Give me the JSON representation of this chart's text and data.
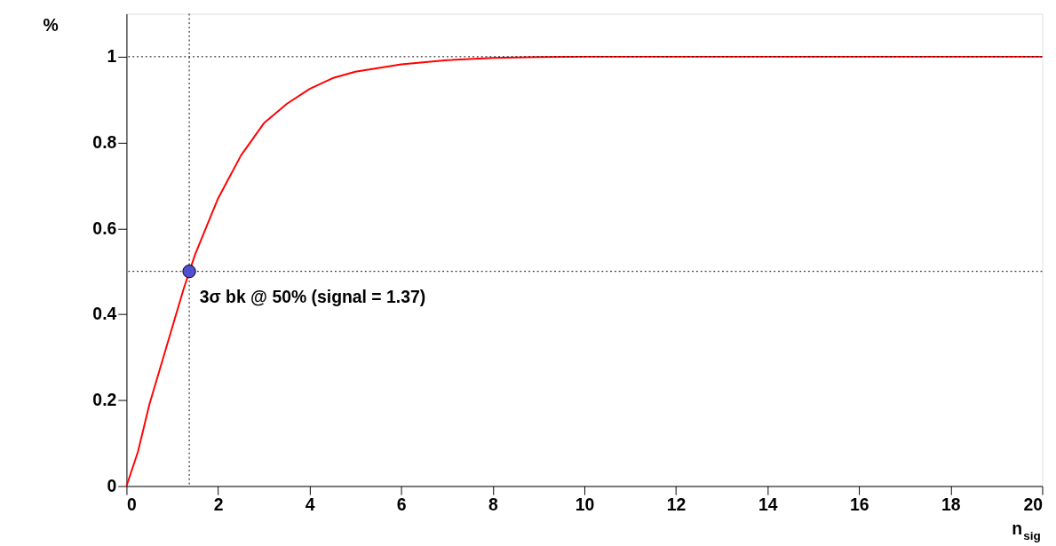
{
  "chart_data": {
    "type": "line",
    "xlabel": "n$_{sig}$",
    "ylabel": "%",
    "xlim": [
      0,
      20
    ],
    "xticks": [
      0,
      2,
      4,
      6,
      8,
      10,
      12,
      14,
      16,
      18,
      20
    ],
    "ylim": [
      0,
      1.1
    ],
    "yticks": [
      0,
      0.2,
      0.4,
      0.6,
      0.8,
      1
    ],
    "line_style": "solid",
    "series": [
      {
        "color": "#ff0000",
        "x": [
          0,
          0.25,
          0.5,
          0.75,
          1,
          1.25,
          1.5,
          2,
          2.5,
          3,
          3.5,
          4,
          4.5,
          5,
          6,
          7,
          8,
          9,
          10,
          20
        ],
        "values": [
          0,
          0.08,
          0.19,
          0.28,
          0.37,
          0.46,
          0.54,
          0.67,
          0.77,
          0.845,
          0.89,
          0.925,
          0.95,
          0.965,
          0.982,
          0.992,
          0.997,
          0.999,
          1,
          1
        ]
      },
      {
        "type": "scatter",
        "color": "#5050d0",
        "marker": "circle",
        "x": [
          1.37
        ],
        "values": [
          0.5
        ]
      }
    ],
    "ref_lines": [
      {
        "axis": "x",
        "value": 1.37,
        "color": "#000000",
        "line_style": "dotted"
      },
      {
        "axis": "y",
        "value": 0.5,
        "color": "#000000",
        "line_style": "dotted"
      },
      {
        "axis": "y",
        "value": 1,
        "color": "#000000",
        "line_style": "dotted"
      }
    ],
    "annotations": [
      {
        "text": "3σ bk @ 50% (signal = 1.37)",
        "x": 1.37,
        "y": 0.5
      }
    ]
  }
}
